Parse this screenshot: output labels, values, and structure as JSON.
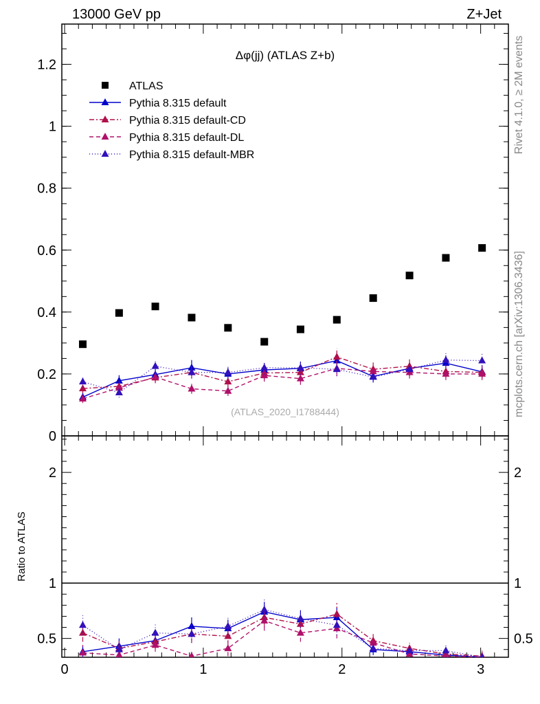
{
  "header": {
    "left": "13000 GeV pp",
    "right": "Z+Jet"
  },
  "side_labels": {
    "rivet": "Rivet 4.1.0, ≥ 2M events",
    "mcplots": "mcplots.cern.ch [arXiv:1306.3436]"
  },
  "chart_data": {
    "type": "scatter",
    "title": "Δφ(jj) (ATLAS Z+b)",
    "watermark": "(ATLAS_2020_I1788444)",
    "xlabel": "",
    "ylabel": "",
    "xlim": [
      -0.02,
      3.2
    ],
    "ylim": [
      0,
      1.33
    ],
    "x_ticks": [
      0,
      1,
      2,
      3
    ],
    "x_tick_labels": [
      "0",
      "1",
      "2",
      "3"
    ],
    "y_ticks": [
      0,
      0.2,
      0.4,
      0.6,
      0.8,
      1,
      1.2
    ],
    "y_tick_labels": [
      "0",
      "0.2",
      "0.4",
      "0.6",
      "0.8",
      "1",
      "1.2"
    ],
    "x": [
      0.131,
      0.393,
      0.654,
      0.916,
      1.178,
      1.44,
      1.701,
      1.963,
      2.225,
      2.487,
      2.749,
      3.01
    ],
    "data": {
      "name": "ATLAS",
      "values": [
        0.296,
        0.397,
        0.418,
        0.382,
        0.349,
        0.304,
        0.344,
        0.375,
        0.445,
        0.518,
        0.575,
        0.607
      ]
    },
    "series": [
      {
        "name": "Pythia 8.315 default",
        "color": "#0000cc",
        "dash": "",
        "values": [
          0.125,
          0.178,
          0.198,
          0.22,
          0.2,
          0.213,
          0.218,
          0.243,
          0.192,
          0.218,
          0.235,
          0.207
        ],
        "errors": [
          0.014,
          0.018,
          0.018,
          0.025,
          0.02,
          0.022,
          0.022,
          0.025,
          0.018,
          0.02,
          0.025,
          0.02
        ]
      },
      {
        "name": "Pythia 8.315 default-CD",
        "color": "#b0104a",
        "dash": "7,3,2,3",
        "values": [
          0.153,
          0.16,
          0.188,
          0.205,
          0.175,
          0.203,
          0.205,
          0.255,
          0.215,
          0.225,
          0.208,
          0.205
        ],
        "errors": [
          0.015,
          0.018,
          0.018,
          0.02,
          0.018,
          0.022,
          0.022,
          0.028,
          0.022,
          0.022,
          0.02,
          0.02
        ]
      },
      {
        "name": "Pythia 8.315 default-DL",
        "color": "#b0106a",
        "dash": "6,4",
        "values": [
          0.12,
          0.155,
          0.19,
          0.152,
          0.145,
          0.195,
          0.185,
          0.218,
          0.208,
          0.205,
          0.2,
          0.2
        ],
        "errors": [
          0.014,
          0.016,
          0.018,
          0.016,
          0.016,
          0.02,
          0.02,
          0.025,
          0.02,
          0.02,
          0.02,
          0.02
        ]
      },
      {
        "name": "Pythia 8.315 default-MBR",
        "color": "#3311bb",
        "dash": "1,3",
        "values": [
          0.175,
          0.14,
          0.225,
          0.205,
          0.205,
          0.22,
          0.22,
          0.215,
          0.19,
          0.215,
          0.245,
          0.243
        ],
        "errors": [
          0.016,
          0.016,
          0.022,
          0.02,
          0.02,
          0.022,
          0.022,
          0.022,
          0.018,
          0.02,
          0.025,
          0.025
        ]
      }
    ],
    "ratio": {
      "ylabel": "Ratio to ATLAS",
      "ylim": [
        0.33,
        2.33
      ],
      "y_ticks": [
        0.5,
        1,
        2
      ],
      "y_tick_labels": [
        "0.5",
        "1",
        "2"
      ],
      "reference_line": 1,
      "series": [
        {
          "name": "Pythia 8.315 default",
          "values": [
            0.38,
            0.43,
            0.48,
            0.61,
            0.59,
            0.74,
            0.67,
            0.69,
            0.4,
            0.38,
            0.35,
            0.33
          ],
          "errors": [
            0.06,
            0.07,
            0.06,
            0.08,
            0.08,
            0.09,
            0.08,
            0.09,
            0.05,
            0.05,
            0.05,
            0.05
          ]
        },
        {
          "name": "Pythia 8.315 default-CD",
          "values": [
            0.55,
            0.41,
            0.47,
            0.54,
            0.52,
            0.69,
            0.63,
            0.72,
            0.48,
            0.41,
            0.36,
            0.34
          ],
          "errors": [
            0.08,
            0.07,
            0.06,
            0.08,
            0.08,
            0.09,
            0.09,
            0.1,
            0.06,
            0.05,
            0.05,
            0.05
          ]
        },
        {
          "name": "Pythia 8.315 default-DL",
          "values": [
            0.37,
            0.35,
            0.44,
            0.34,
            0.41,
            0.66,
            0.55,
            0.59,
            0.46,
            0.36,
            0.34,
            0.33
          ],
          "errors": [
            0.07,
            0.06,
            0.06,
            0.06,
            0.07,
            0.09,
            0.08,
            0.09,
            0.06,
            0.05,
            0.05,
            0.05
          ]
        },
        {
          "name": "Pythia 8.315 default-MBR",
          "values": [
            0.62,
            0.4,
            0.55,
            0.54,
            0.61,
            0.76,
            0.68,
            0.62,
            0.41,
            0.39,
            0.39,
            0.33
          ],
          "errors": [
            0.09,
            0.07,
            0.08,
            0.08,
            0.08,
            0.09,
            0.08,
            0.09,
            0.06,
            0.05,
            0.06,
            0.05
          ]
        }
      ]
    }
  }
}
